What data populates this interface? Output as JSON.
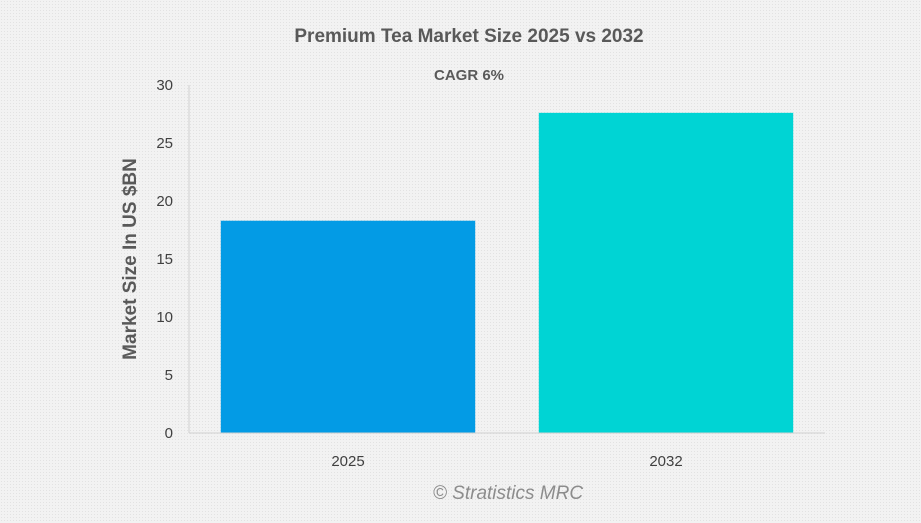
{
  "chart_data": {
    "type": "bar",
    "title": "Premium Tea Market Size 2025 vs 2032",
    "subtitle": "CAGR 6%",
    "categories": [
      "2025",
      "2032"
    ],
    "values": [
      18.3,
      27.6
    ],
    "ylabel": "Market Size In US $BN",
    "xlabel": "",
    "ylim": [
      0,
      30
    ],
    "yticks": [
      0,
      5,
      10,
      15,
      20,
      25,
      30
    ],
    "grid": false,
    "legend": "none",
    "bar_colors": [
      "#039be5",
      "#00d4d4"
    ],
    "watermark": "© Stratistics MRC"
  },
  "colors": {
    "text_dark": "#595959",
    "text_axis": "#404040",
    "axis_line": "#d0d0d0",
    "watermark": "#8c8c8c"
  }
}
